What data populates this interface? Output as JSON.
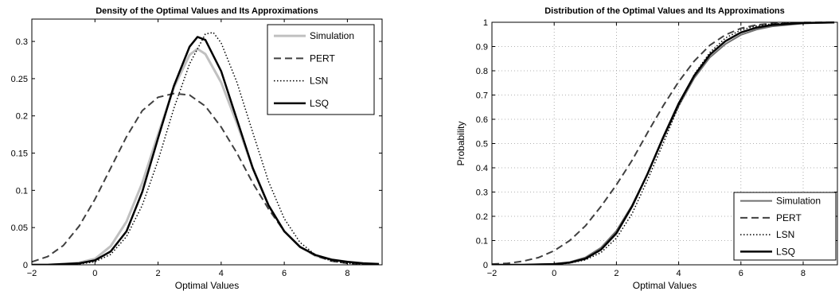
{
  "chart_data": [
    {
      "type": "line",
      "title": "Density of the Optimal Values and Its Approximations",
      "xlabel": "Optimal Values",
      "ylabel": "",
      "xlim": [
        -2,
        9.1
      ],
      "ylim": [
        0,
        0.33
      ],
      "xticks": [
        -2,
        0,
        2,
        4,
        6,
        8
      ],
      "xtick_labels": [
        "−2",
        "0",
        "2",
        "4",
        "6",
        "8"
      ],
      "yticks": [
        0,
        0.05,
        0.1,
        0.15,
        0.2,
        0.25,
        0.3
      ],
      "ytick_labels": [
        "0",
        "0.05",
        "0.1",
        "0.15",
        "0.2",
        "0.25",
        "0.3"
      ],
      "grid": false,
      "legend_position": "top-right",
      "series": [
        {
          "name": "Simulation",
          "color": "#c0c0c0",
          "style": "solid",
          "width": 3,
          "x": [
            -2,
            -1.5,
            -1,
            -0.5,
            0,
            0.5,
            1,
            1.5,
            2,
            2.5,
            3,
            3.25,
            3.5,
            4,
            4.5,
            5,
            5.5,
            6,
            6.5,
            7,
            7.5,
            8,
            8.5,
            9
          ],
          "y": [
            0,
            0,
            0.001,
            0.003,
            0.008,
            0.025,
            0.058,
            0.11,
            0.175,
            0.238,
            0.282,
            0.29,
            0.283,
            0.245,
            0.19,
            0.13,
            0.08,
            0.045,
            0.024,
            0.012,
            0.007,
            0.004,
            0.002,
            0.001
          ]
        },
        {
          "name": "PERT",
          "color": "#404040",
          "style": "dashed",
          "width": 2,
          "x": [
            -2,
            -1.5,
            -1,
            -0.5,
            0,
            0.5,
            1,
            1.5,
            2,
            2.5,
            3,
            3.5,
            4,
            4.5,
            5,
            5.5,
            6,
            6.5,
            7,
            7.5,
            8,
            8.5,
            9
          ],
          "y": [
            0.004,
            0.011,
            0.026,
            0.052,
            0.088,
            0.13,
            0.172,
            0.207,
            0.225,
            0.23,
            0.228,
            0.213,
            0.185,
            0.15,
            0.11,
            0.075,
            0.045,
            0.024,
            0.012,
            0.005,
            0.002,
            0.001,
            0
          ]
        },
        {
          "name": "LSN",
          "color": "#000000",
          "style": "dotted",
          "width": 1.5,
          "x": [
            -2,
            -1.5,
            -1,
            -0.5,
            0,
            0.5,
            1,
            1.5,
            2,
            2.5,
            3,
            3.5,
            3.75,
            4,
            4.5,
            5,
            5.5,
            6,
            6.5,
            7,
            7.5,
            8,
            8.5,
            9
          ],
          "y": [
            0,
            0,
            0,
            0.001,
            0.004,
            0.014,
            0.038,
            0.08,
            0.14,
            0.21,
            0.27,
            0.31,
            0.312,
            0.298,
            0.245,
            0.178,
            0.112,
            0.062,
            0.03,
            0.013,
            0.005,
            0.002,
            0.001,
            0
          ]
        },
        {
          "name": "LSQ",
          "color": "#000000",
          "style": "solid",
          "width": 2.5,
          "x": [
            -2,
            -1.5,
            -1,
            -0.5,
            0,
            0.5,
            1,
            1.5,
            2,
            2.5,
            3,
            3.25,
            3.5,
            4,
            4.5,
            5,
            5.5,
            6,
            6.5,
            7,
            7.5,
            8,
            8.5,
            9
          ],
          "y": [
            0,
            0,
            0.001,
            0.002,
            0.006,
            0.018,
            0.045,
            0.098,
            0.17,
            0.24,
            0.293,
            0.306,
            0.302,
            0.26,
            0.195,
            0.13,
            0.08,
            0.045,
            0.024,
            0.013,
            0.007,
            0.004,
            0.002,
            0.001
          ]
        }
      ]
    },
    {
      "type": "line",
      "title": "Distribution of the Optimal Values and Its Approximations",
      "xlabel": "Optimal Values",
      "ylabel": "Probability",
      "xlim": [
        -2,
        9.1
      ],
      "ylim": [
        0,
        1
      ],
      "xticks": [
        -2,
        0,
        2,
        4,
        6,
        8
      ],
      "xtick_labels": [
        "−2",
        "0",
        "2",
        "4",
        "6",
        "8"
      ],
      "yticks": [
        0,
        0.1,
        0.2,
        0.3,
        0.4,
        0.5,
        0.6,
        0.7,
        0.8,
        0.9,
        1
      ],
      "ytick_labels": [
        "0",
        "0.1",
        "0.2",
        "0.3",
        "0.4",
        "0.5",
        "0.6",
        "0.7",
        "0.8",
        "0.9",
        "1"
      ],
      "grid": true,
      "legend_position": "bottom-right",
      "series": [
        {
          "name": "Simulation",
          "color": "#707070",
          "style": "solid",
          "width": 2,
          "x": [
            -2,
            -1,
            0,
            0.5,
            1,
            1.5,
            2,
            2.5,
            3,
            3.5,
            4,
            4.5,
            5,
            5.5,
            6,
            6.5,
            7,
            8,
            9
          ],
          "y": [
            0,
            0,
            0.004,
            0.011,
            0.03,
            0.07,
            0.14,
            0.245,
            0.375,
            0.52,
            0.655,
            0.77,
            0.855,
            0.91,
            0.948,
            0.97,
            0.983,
            0.995,
            0.999
          ]
        },
        {
          "name": "PERT",
          "color": "#404040",
          "style": "dashed",
          "width": 2,
          "x": [
            -2,
            -1.5,
            -1,
            -0.5,
            0,
            0.5,
            1,
            1.5,
            2,
            2.5,
            3,
            3.5,
            4,
            4.5,
            5,
            5.5,
            6,
            6.5,
            7,
            8,
            9
          ],
          "y": [
            0.003,
            0.006,
            0.015,
            0.03,
            0.058,
            0.1,
            0.16,
            0.24,
            0.33,
            0.43,
            0.545,
            0.655,
            0.755,
            0.84,
            0.905,
            0.948,
            0.975,
            0.989,
            0.995,
            0.999,
            1
          ]
        },
        {
          "name": "LSN",
          "color": "#000000",
          "style": "dotted",
          "width": 1.5,
          "x": [
            -2,
            -1,
            0,
            0.5,
            1,
            1.5,
            2,
            2.5,
            3,
            3.5,
            4,
            4.5,
            5,
            5.5,
            6,
            6.5,
            7,
            8,
            9
          ],
          "y": [
            0,
            0,
            0.002,
            0.007,
            0.02,
            0.05,
            0.11,
            0.21,
            0.35,
            0.5,
            0.655,
            0.785,
            0.875,
            0.935,
            0.968,
            0.985,
            0.993,
            0.998,
            1
          ]
        },
        {
          "name": "LSQ",
          "color": "#000000",
          "style": "solid",
          "width": 2.5,
          "x": [
            -2,
            -1,
            0,
            0.5,
            1,
            1.5,
            2,
            2.5,
            3,
            3.5,
            4,
            4.5,
            5,
            5.5,
            6,
            6.5,
            7,
            8,
            9
          ],
          "y": [
            0,
            0,
            0.003,
            0.009,
            0.025,
            0.062,
            0.13,
            0.24,
            0.375,
            0.525,
            0.665,
            0.78,
            0.866,
            0.922,
            0.958,
            0.978,
            0.989,
            0.997,
            0.999
          ]
        }
      ]
    }
  ]
}
